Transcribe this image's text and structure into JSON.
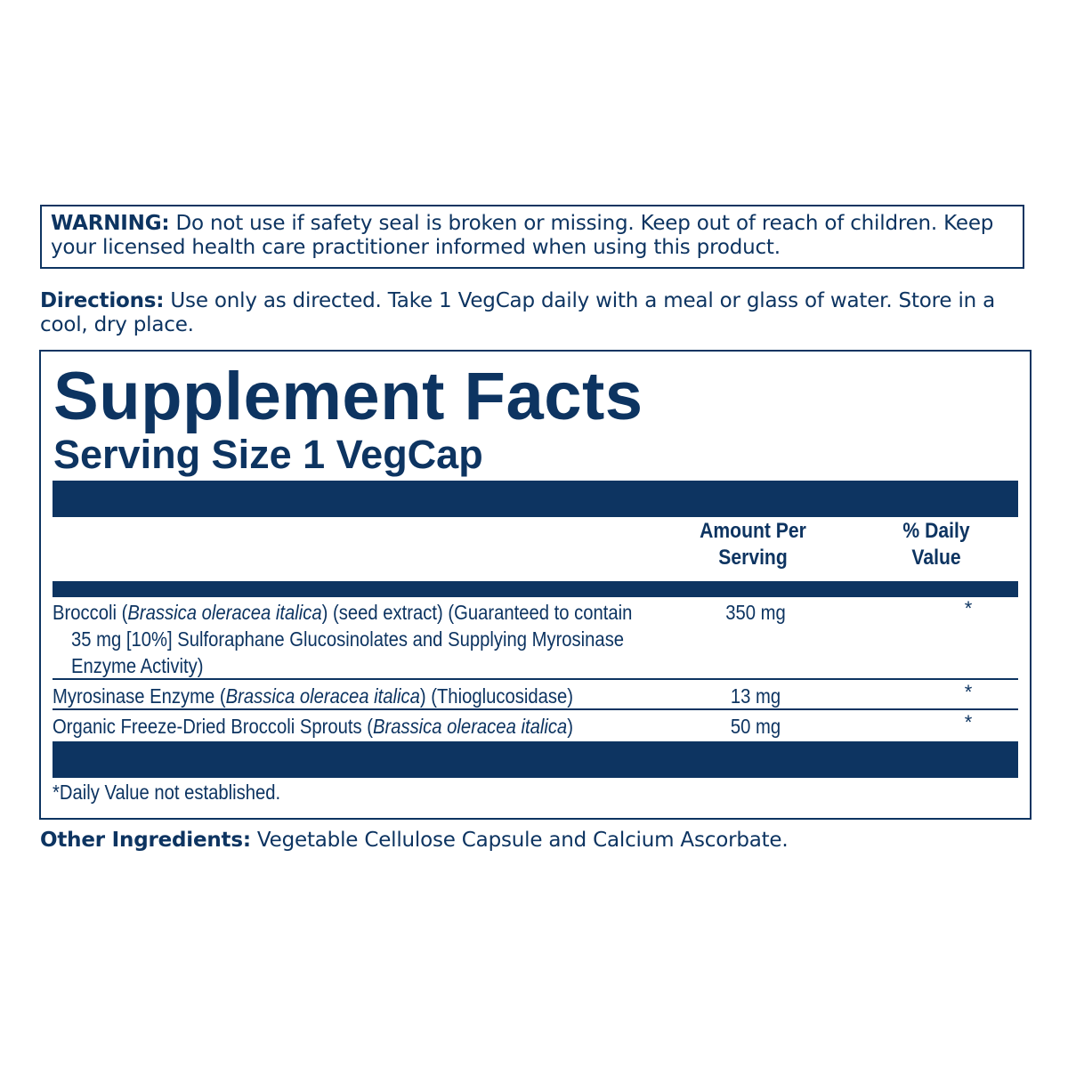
{
  "warning": {
    "label": "WARNING:",
    "text": " Do not use if safety seal is broken or missing. Keep out of reach of children. Keep your licensed health care practitioner informed when using this product."
  },
  "directions": {
    "label": "Directions:",
    "text": " Use only as directed. Take 1 VegCap daily with a meal or glass of water. Store in a cool, dry place."
  },
  "facts": {
    "title": "Supplement Facts",
    "serving_size": "Serving Size 1 VegCap",
    "col_amount": [
      "Amount Per",
      "Serving"
    ],
    "col_dv": [
      "% Daily",
      "Value"
    ],
    "rows": [
      {
        "lines": [
          [
            "Broccoli (",
            "Brassica oleracea italica",
            ") (seed extract) (Guaranteed to contain"
          ],
          [
            "35 mg [10%] Sulforaphane Glucosinolates and Supplying Myrosinase"
          ],
          [
            "Enzyme Activity)"
          ]
        ],
        "amount": "350 mg",
        "dv": "*"
      },
      {
        "lines": [
          [
            "Myrosinase Enzyme (",
            "Brassica oleracea italica",
            ") (Thioglucosidase)"
          ]
        ],
        "amount": "13 mg",
        "dv": "*"
      },
      {
        "lines": [
          [
            "Organic Freeze-Dried Broccoli Sprouts (",
            "Brassica oleracea italica",
            ")"
          ]
        ],
        "amount": "50 mg",
        "dv": "*"
      }
    ],
    "footnote": "*Daily Value not established."
  },
  "other_ingredients": {
    "label": "Other Ingredients:",
    "text": " Vegetable Cellulose Capsule and Calcium Ascorbate."
  },
  "colors": {
    "ink": "#0d3461",
    "background": "#ffffff"
  }
}
